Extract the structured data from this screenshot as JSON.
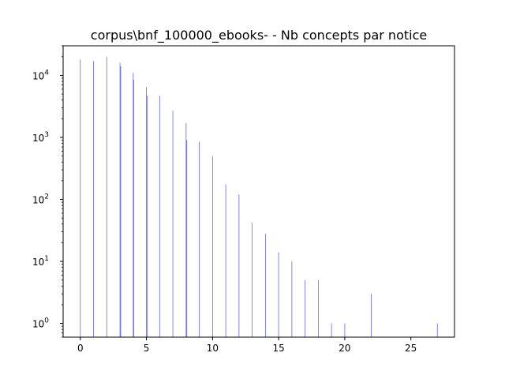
{
  "chart_data": {
    "type": "bar",
    "title": "corpus\\bnf_100000_ebooks- - Nb concepts par notice",
    "xlabel": "",
    "ylabel": "",
    "yscale": "log",
    "grid": false,
    "bar_color": "#0000ff",
    "xlim": [
      -1.3,
      28.3
    ],
    "ylim": [
      0.6,
      30000
    ],
    "x_ticks": [
      {
        "value": 0,
        "label": "0"
      },
      {
        "value": 5,
        "label": "5"
      },
      {
        "value": 10,
        "label": "10"
      },
      {
        "value": 15,
        "label": "15"
      },
      {
        "value": 20,
        "label": "20"
      },
      {
        "value": 25,
        "label": "25"
      }
    ],
    "y_ticks": [
      {
        "value": 1,
        "base": "10",
        "exp": "0"
      },
      {
        "value": 10,
        "base": "10",
        "exp": "1"
      },
      {
        "value": 100,
        "base": "10",
        "exp": "2"
      },
      {
        "value": 1000,
        "base": "10",
        "exp": "3"
      },
      {
        "value": 10000,
        "base": "10",
        "exp": "4"
      }
    ],
    "x": [
      0,
      1,
      2,
      3,
      3.05,
      4,
      4.05,
      5,
      5.05,
      6,
      7,
      8,
      8.05,
      9,
      10,
      11,
      12,
      13,
      14,
      15,
      16,
      17,
      18,
      19,
      20,
      22,
      27
    ],
    "values": [
      18000,
      17000,
      20000,
      16000,
      14000,
      11000,
      8500,
      6500,
      4700,
      4700,
      2700,
      1700,
      900,
      850,
      500,
      175,
      120,
      42,
      28,
      14,
      10,
      5,
      5,
      1,
      1,
      3,
      1
    ]
  }
}
